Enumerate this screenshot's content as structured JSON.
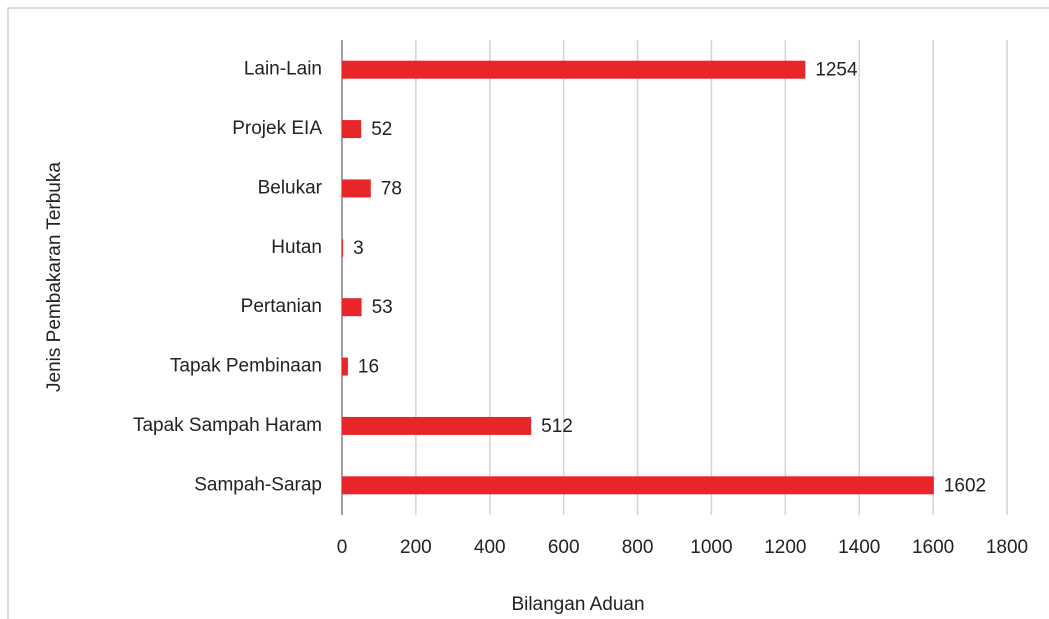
{
  "chart_data": {
    "type": "bar",
    "orientation": "horizontal",
    "categories": [
      "Lain-Lain",
      "Projek EIA",
      "Belukar",
      "Hutan",
      "Pertanian",
      "Tapak Pembinaan",
      "Tapak Sampah Haram",
      "Sampah-Sarap"
    ],
    "values": [
      1254,
      52,
      78,
      3,
      53,
      16,
      512,
      1602
    ],
    "color": "#e8262a",
    "xlim": [
      0,
      1800
    ],
    "xticks": [
      0,
      200,
      400,
      600,
      800,
      1000,
      1200,
      1400,
      1600,
      1800
    ],
    "grid": true,
    "x_label": "Bilangan Aduan",
    "y_label": "Jenis Pembakaran Terbuka"
  }
}
